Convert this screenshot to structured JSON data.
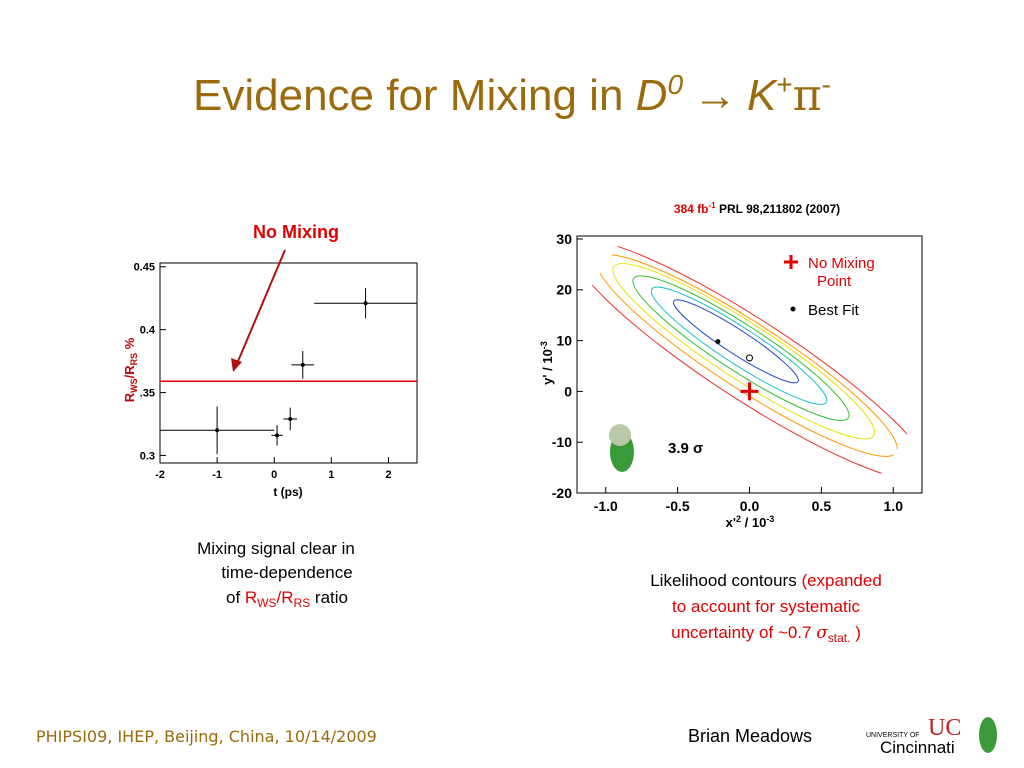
{
  "slide": {
    "title": {
      "text": "Evidence for Mixing in ",
      "d": "D",
      "d_sup": "0",
      "arrow": "→",
      "k": "K",
      "k_sup": "+",
      "pi": "π",
      "pi_sup": "-"
    },
    "left_caption": {
      "line1": "Mixing signal clear in",
      "line2": "time-dependence",
      "line3_a": "of ",
      "r1": "R",
      "r1_sub": "WS",
      "slash": "/",
      "r2": "R",
      "r2_sub": "RS",
      "line3_b": " ratio"
    },
    "right_caption": {
      "line1_a": "Likelihood contours ",
      "line1_b": "(expanded",
      "line2": "to account for systematic",
      "line3_a": "uncertainty of ~0.7 ",
      "sigma": "σ",
      "sigma_sub": "stat.",
      "line3_b": " )"
    },
    "footer_left": "PHIPSI09, IHEP, Beijing, China, 10/14/2009",
    "footer_author": "Brian Meadows",
    "logo_small": "UNIVERSITY OF",
    "logo_big": "Cincinnati"
  },
  "chart_data": [
    {
      "type": "scatter",
      "annotation": "No Mixing",
      "xlabel": "t (ps)",
      "ylabel": {
        "r1": "R",
        "r1_sub": "WS",
        "slash": "/",
        "r2": "R",
        "r2_sub": "RS",
        "unit": " %"
      },
      "x": [
        -1,
        0.05,
        0.28,
        0.5,
        1.6
      ],
      "xerrors": [
        1,
        0.1,
        0.12,
        0.2,
        0.9
      ],
      "values": [
        0.32,
        0.316,
        0.329,
        0.372,
        0.421
      ],
      "errors": [
        0.019,
        0.008,
        0.009,
        0.011,
        0.012
      ],
      "color": "#000000",
      "no_mixing_level": 0.359,
      "no_mixing_color": "#e00000",
      "xlim": [
        -2,
        2.5
      ],
      "ylim": [
        0.294,
        0.453
      ],
      "xticks": [
        -2,
        -1,
        0,
        1,
        2
      ],
      "yticks": [
        {
          "value": 0.3,
          "label": "0.3"
        },
        {
          "value": 0.35,
          "label": ".35"
        },
        {
          "value": 0.4,
          "label": "0.4"
        },
        {
          "value": 0.45,
          "label": "0.45"
        }
      ]
    },
    {
      "type": "scatter",
      "annotation": {
        "lumi": "384 fb",
        "lumi_sup": "-1",
        "ref": " PRL 98,211802 (2007)"
      },
      "significance": "3.9 σ",
      "xlabel": {
        "a": "x'",
        "sup": "2",
        "b": " / 10",
        "sup2": "-3"
      },
      "ylabel": {
        "a": "y' / 10",
        "sup": "-3"
      },
      "series": [
        {
          "name": [
            "No Mixing",
            "Point"
          ],
          "color": "#e00000",
          "marker": "plus",
          "x": [
            0
          ],
          "values": [
            0
          ]
        },
        {
          "name": "Best Fit",
          "color": "#000000",
          "marker": "dot",
          "x": [
            -0.22
          ],
          "values": [
            9.8
          ]
        },
        {
          "color": "#000000",
          "marker": "circle",
          "x": [
            0.0
          ],
          "values": [
            6.6
          ]
        }
      ],
      "xlim": [
        -1.2,
        1.2
      ],
      "ylim": [
        -20,
        30
      ],
      "xticks": [
        {
          "value": -1,
          "label": "-1.0"
        },
        -0.5,
        {
          "value": 0,
          "label": "0.0"
        },
        0.5,
        {
          "value": 1,
          "label": "1.0"
        }
      ],
      "yticks": [
        -20,
        -10,
        0,
        10,
        20,
        30
      ]
    }
  ]
}
